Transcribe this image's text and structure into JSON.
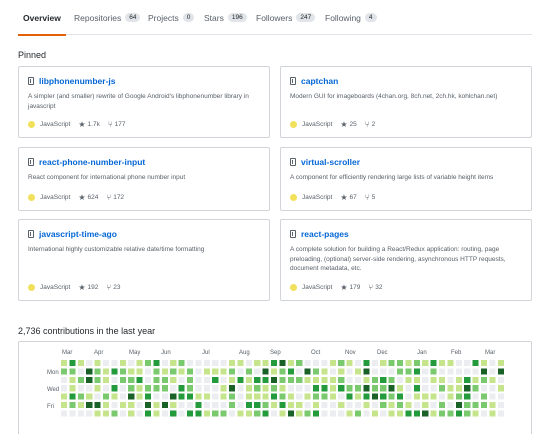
{
  "tabs": [
    {
      "label": "Overview",
      "count": null,
      "selected": true
    },
    {
      "label": "Repositories",
      "count": "64",
      "selected": false
    },
    {
      "label": "Projects",
      "count": "0",
      "selected": false
    },
    {
      "label": "Stars",
      "count": "196",
      "selected": false
    },
    {
      "label": "Followers",
      "count": "247",
      "selected": false
    },
    {
      "label": "Following",
      "count": "4",
      "selected": false
    }
  ],
  "pinned": {
    "title": "Pinned",
    "repos": [
      {
        "name": "libphonenumber-js",
        "description": "A simpler (and smaller) rewrite of Google Android's libphonenumber library in javascript",
        "language": "JavaScript",
        "language_color": "#f1e05a",
        "stars": "1.7k",
        "forks": "177"
      },
      {
        "name": "captchan",
        "description": "Modern GUI for imageboards (4chan.org, 8ch.net, 2ch.hk, kohlchan.net)",
        "language": "JavaScript",
        "language_color": "#f1e05a",
        "stars": "25",
        "forks": "2"
      },
      {
        "name": "react-phone-number-input",
        "description": "React component for international phone number input",
        "language": "JavaScript",
        "language_color": "#f1e05a",
        "stars": "624",
        "forks": "172"
      },
      {
        "name": "virtual-scroller",
        "description": "A component for efficiently rendering large lists of variable height items",
        "language": "JavaScript",
        "language_color": "#f1e05a",
        "stars": "67",
        "forks": "5"
      },
      {
        "name": "javascript-time-ago",
        "description": "International highly customizable relative date/time formatting",
        "language": "JavaScript",
        "language_color": "#f1e05a",
        "stars": "192",
        "forks": "23"
      },
      {
        "name": "react-pages",
        "description": "A complete solution for building a React/Redux application: routing, page preloading, (optional) server-side rendering, asynchronous HTTP requests, document metadata, etc.",
        "language": "JavaScript",
        "language_color": "#f1e05a",
        "stars": "179",
        "forks": "32"
      }
    ]
  },
  "contributions": {
    "title": "2,736 contributions in the last year",
    "months": [
      "Mar",
      "Apr",
      "May",
      "Jun",
      "Jul",
      "Aug",
      "Sep",
      "Oct",
      "Nov",
      "Dec",
      "Jan",
      "Feb",
      "Mar"
    ],
    "weekdays": [
      "Mon",
      "Wed",
      "Fri"
    ],
    "palette": [
      "#ebedf0",
      "#c6e48b",
      "#7bc96f",
      "#239a3b",
      "#196127"
    ]
  }
}
